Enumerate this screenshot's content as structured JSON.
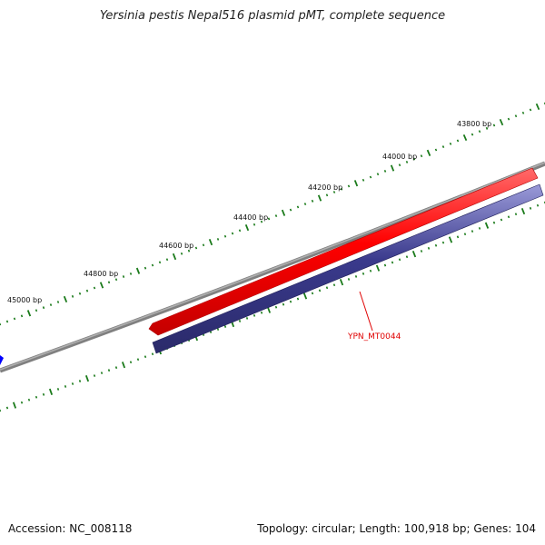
{
  "title": "Yersinia pestis Nepal516 plasmid pMT, complete sequence",
  "accession": "Accession: NC_008118",
  "summary": "Topology: circular; Length: 100,918 bp; Genes: 104",
  "tick_labels": [
    "43800 bp",
    "44000 bp",
    "44200 bp",
    "44400 bp",
    "44600 bp",
    "44800 bp",
    "45000 bp"
  ],
  "gene": {
    "label": "YPN_MT0044",
    "forward_color": "#ff0000",
    "translation_color": "#3a3a8c"
  },
  "colors": {
    "backbone": "#808080",
    "ticks": "#1a7a1a",
    "feature_marker": "#0000ff"
  }
}
